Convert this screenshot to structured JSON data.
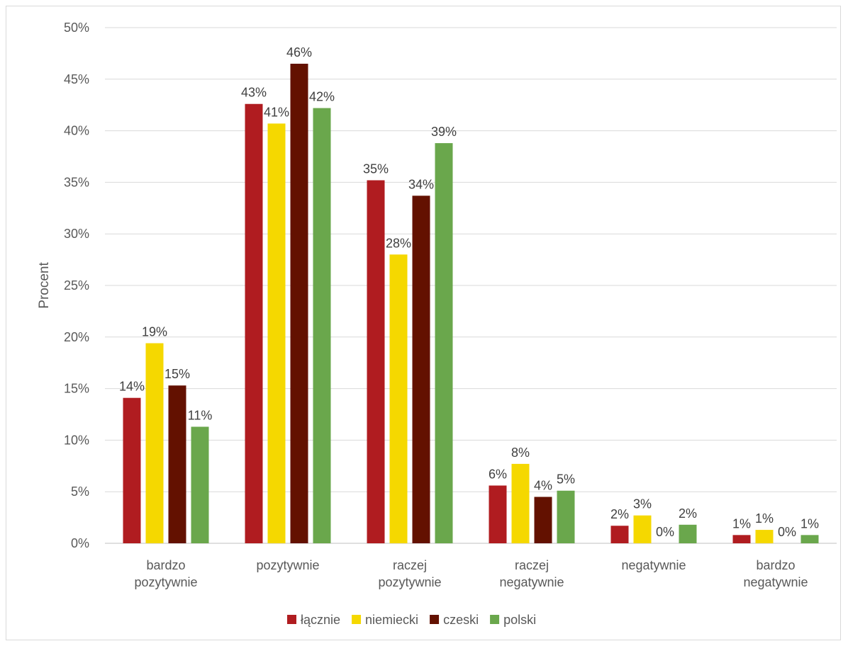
{
  "chart_data": {
    "type": "bar",
    "title": "",
    "xlabel": "",
    "ylabel": "Procent",
    "ylim": [
      0,
      50
    ],
    "y_ticks": [
      0,
      5,
      10,
      15,
      20,
      25,
      30,
      35,
      40,
      45,
      50
    ],
    "y_tick_suffix": "%",
    "grid": true,
    "legend_position": "bottom",
    "categories": [
      [
        "bardzo",
        "pozytywnie"
      ],
      [
        "pozytywnie"
      ],
      [
        "raczej",
        "pozytywnie"
      ],
      [
        "raczej",
        "negatywnie"
      ],
      [
        "negatywnie"
      ],
      [
        "bardzo",
        "negatywnie"
      ]
    ],
    "series": [
      {
        "name": "łącznie",
        "color": "#b01c20",
        "values": [
          14.1,
          42.6,
          35.2,
          5.6,
          1.7,
          0.8
        ],
        "labels": [
          "14%",
          "43%",
          "35%",
          "6%",
          "2%",
          "1%"
        ]
      },
      {
        "name": "niemiecki",
        "color": "#f5d800",
        "values": [
          19.4,
          40.7,
          28.0,
          7.7,
          2.7,
          1.3
        ],
        "labels": [
          "19%",
          "41%",
          "28%",
          "8%",
          "3%",
          "1%"
        ]
      },
      {
        "name": "czeski",
        "color": "#631100",
        "values": [
          15.3,
          46.5,
          33.7,
          4.5,
          0.0,
          0.0
        ],
        "labels": [
          "15%",
          "46%",
          "34%",
          "4%",
          "0%",
          "0%"
        ]
      },
      {
        "name": "polski",
        "color": "#6aa74c",
        "values": [
          11.3,
          42.2,
          38.8,
          5.1,
          1.8,
          0.8
        ],
        "labels": [
          "11%",
          "42%",
          "39%",
          "5%",
          "2%",
          "1%"
        ]
      }
    ]
  }
}
